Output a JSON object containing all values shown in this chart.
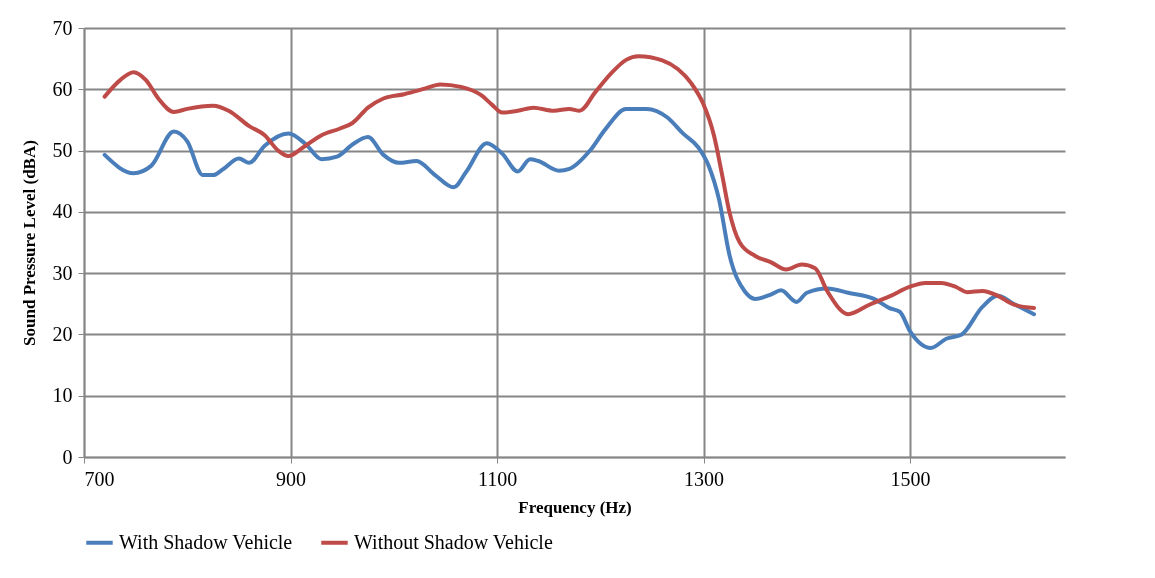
{
  "chart_data": {
    "type": "line",
    "xlabel": "Frequency (Hz)",
    "ylabel": "Sound Pressure Level (dBA)",
    "xlim": [
      700,
      1650
    ],
    "xticks": [
      700,
      900,
      1100,
      1300,
      1500
    ],
    "ylim": [
      0,
      70
    ],
    "yticks": [
      0,
      10,
      20,
      30,
      40,
      50,
      60,
      70
    ],
    "grid": true,
    "legend": "bottom",
    "marker": "none",
    "line_style": "solid",
    "series": [
      {
        "name": "With Shadow Vehicle",
        "color": "#4a7ebb",
        "x": [
          720,
          748,
          765,
          787,
          800,
          815,
          825,
          835,
          850,
          860,
          875,
          898,
          915,
          930,
          945,
          960,
          975,
          990,
          1005,
          1022,
          1040,
          1058,
          1070,
          1090,
          1105,
          1120,
          1132,
          1140,
          1160,
          1170,
          1190,
          1205,
          1225,
          1245,
          1265,
          1280,
          1295,
          1305,
          1315,
          1325,
          1340,
          1350,
          1365,
          1375,
          1390,
          1400,
          1420,
          1440,
          1465,
          1480,
          1490,
          1500,
          1520,
          1535,
          1550,
          1570,
          1585,
          1600,
          1620
        ],
        "values": [
          49.3,
          46.3,
          47.5,
          53.1,
          51.5,
          46,
          46,
          47,
          48.7,
          48,
          50.8,
          52.8,
          51,
          48.6,
          49,
          51,
          52.2,
          49.3,
          48,
          48.3,
          46,
          44,
          46.5,
          51.2,
          49.5,
          46.6,
          48.6,
          48.3,
          46.7,
          47,
          50,
          53.5,
          56.8,
          56.8,
          55.4,
          52.8,
          50.5,
          47.5,
          42,
          33,
          27,
          25.8,
          26.5,
          27.2,
          25.3,
          26.8,
          27.5,
          26.8,
          25.8,
          24.3,
          23.7,
          20.5,
          17.8,
          19.3,
          20,
          24.5,
          26.3,
          25,
          23.3
        ]
      },
      {
        "name": "Without Shadow Vehicle",
        "color": "#be4b48",
        "x": [
          720,
          735,
          748,
          760,
          772,
          787,
          800,
          825,
          840,
          860,
          875,
          888,
          898,
          912,
          930,
          948,
          960,
          975,
          990,
          1010,
          1030,
          1045,
          1065,
          1085,
          1095,
          1105,
          1120,
          1135,
          1155,
          1170,
          1180,
          1195,
          1210,
          1225,
          1237,
          1260,
          1275,
          1288,
          1300,
          1310,
          1318,
          1325,
          1335,
          1350,
          1365,
          1380,
          1395,
          1408,
          1420,
          1440,
          1460,
          1480,
          1500,
          1515,
          1530,
          1545,
          1555,
          1570,
          1585,
          1600,
          1620
        ],
        "values": [
          58.8,
          61.5,
          62.8,
          61.5,
          58.5,
          56.3,
          56.8,
          57.3,
          56.5,
          54,
          52.5,
          50,
          49.1,
          50.5,
          52.5,
          53.6,
          54.5,
          57,
          58.5,
          59.2,
          60.1,
          60.8,
          60.4,
          59,
          57.5,
          56.2,
          56.5,
          57,
          56.5,
          56.8,
          56.5,
          59.5,
          62.5,
          64.8,
          65.4,
          64.7,
          63.3,
          61,
          57.5,
          52.5,
          46,
          40,
          35,
          32.8,
          31.8,
          30.6,
          31.4,
          30.8,
          27,
          23.3,
          24.8,
          26.2,
          27.8,
          28.4,
          28.4,
          27.7,
          26.9,
          27.1,
          26.3,
          24.9,
          24.3
        ]
      }
    ]
  }
}
